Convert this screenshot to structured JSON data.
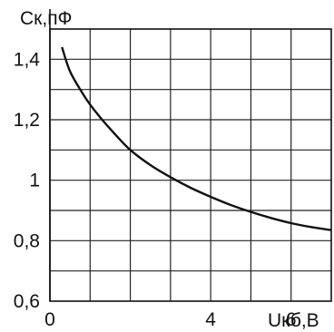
{
  "chart_data": {
    "type": "line",
    "title": "",
    "ylabel": "Ск,пФ",
    "xlabel": "Uкб,В",
    "xlim": [
      0,
      7
    ],
    "ylim": [
      0.6,
      1.5
    ],
    "x_ticks": [
      0,
      4,
      6
    ],
    "x_tick_labels": [
      "0",
      "4",
      "6"
    ],
    "y_ticks": [
      0.6,
      0.8,
      1.0,
      1.2,
      1.4
    ],
    "y_tick_labels": [
      "0,6",
      "0,8",
      "1",
      "1,2",
      "1,4"
    ],
    "x_grid_step": 1,
    "y_grid_step": 0.1,
    "grid": true,
    "series": [
      {
        "x": [
          0.3,
          0.5,
          0.8,
          1.0,
          1.3,
          1.6,
          2.0,
          2.5,
          3.0,
          3.5,
          4.0,
          4.5,
          5.0,
          5.5,
          6.0,
          6.5,
          7.0
        ],
        "y": [
          1.44,
          1.36,
          1.29,
          1.25,
          1.2,
          1.155,
          1.1,
          1.05,
          1.01,
          0.975,
          0.945,
          0.918,
          0.895,
          0.875,
          0.858,
          0.845,
          0.835
        ],
        "color": "#111111"
      }
    ]
  }
}
